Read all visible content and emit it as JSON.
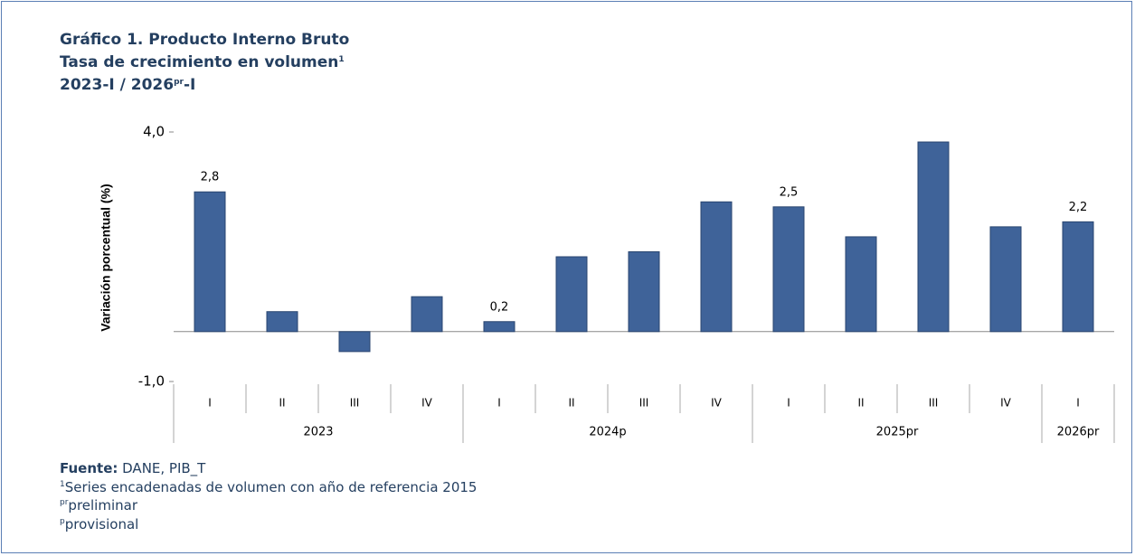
{
  "header": {
    "title": "Gráfico 1. Producto Interno Bruto",
    "subtitle": {
      "text": "Tasa de crecimiento en volumen",
      "sup": "1"
    },
    "period": {
      "start": "2023-I / 2026",
      "sup": "pr",
      "end": "-I"
    }
  },
  "chart_data": {
    "type": "bar",
    "ylabel": "Variación porcentual (%)",
    "groups": [
      {
        "label": "2023",
        "categories": [
          "I",
          "II",
          "III",
          "IV"
        ]
      },
      {
        "label": "2024p",
        "categories": [
          "I",
          "II",
          "III",
          "IV"
        ]
      },
      {
        "label": "2025pr",
        "categories": [
          "I",
          "II",
          "III",
          "IV"
        ]
      },
      {
        "label": "2026pr",
        "categories": [
          "I"
        ]
      }
    ],
    "values": [
      2.8,
      0.4,
      -0.4,
      0.7,
      0.2,
      1.5,
      1.6,
      2.6,
      2.5,
      1.9,
      3.8,
      2.1,
      2.2
    ],
    "value_labels": [
      "2,8",
      null,
      null,
      null,
      "0,2",
      null,
      null,
      null,
      "2,5",
      null,
      null,
      null,
      "2,2"
    ],
    "color": "#3f6399",
    "ylim": [
      -1.0,
      4.0
    ],
    "yticks": [
      {
        "value": 4.0,
        "label": "4,0"
      },
      {
        "value": -1.0,
        "label": "-1,0"
      }
    ]
  },
  "footer": {
    "source": {
      "label": "Fuente:",
      "text": " DANE, PIB_T"
    },
    "notes": [
      {
        "sup": "1",
        "text": "Series encadenadas de volumen con año de referencia 2015"
      },
      {
        "sup": "pr",
        "text": "preliminar"
      },
      {
        "sup": "p",
        "text": "provisional"
      }
    ]
  }
}
